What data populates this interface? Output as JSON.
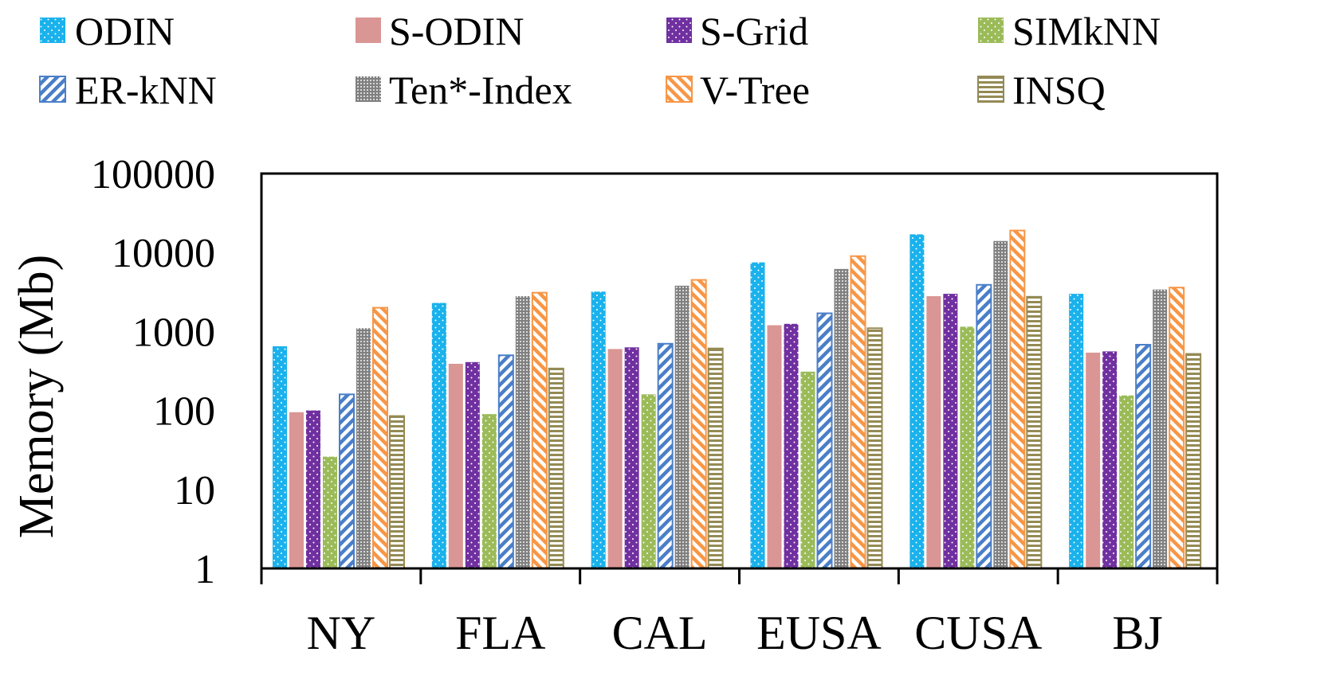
{
  "chart_data": {
    "type": "bar",
    "scale": "log",
    "xlabel": "",
    "ylabel": "Memory (Mb)",
    "ylim": [
      1,
      100000
    ],
    "yticks": [
      "1",
      "10",
      "100",
      "1000",
      "10000",
      "100000"
    ],
    "grid": false,
    "legend_position": "top",
    "categories": [
      "NY",
      "FLA",
      "CAL",
      "EUSA",
      "CUSA",
      "BJ"
    ],
    "series": [
      {
        "name": "ODIN",
        "color": "#1AB2EC",
        "pattern": "dots-white",
        "values": [
          650,
          2300,
          3200,
          7500,
          17000,
          3000
        ]
      },
      {
        "name": "S-ODIN",
        "color": "#D99694",
        "pattern": "solid",
        "values": [
          95,
          390,
          600,
          1200,
          2800,
          540
        ]
      },
      {
        "name": "S-Grid",
        "color": "#7030A0",
        "pattern": "dots-white",
        "values": [
          100,
          410,
          630,
          1250,
          3000,
          560
        ]
      },
      {
        "name": "SIMkNN",
        "color": "#9BBB59",
        "pattern": "dots-white",
        "values": [
          26,
          90,
          160,
          310,
          1150,
          155
        ]
      },
      {
        "name": "ER-kNN",
        "color": "#4A7EC8",
        "pattern": "diagonal-left",
        "values": [
          160,
          500,
          700,
          1700,
          3900,
          680
        ]
      },
      {
        "name": "Ten*-Index",
        "color": "#808080",
        "pattern": "dots-dense",
        "values": [
          1100,
          2800,
          3800,
          6200,
          14000,
          3400
        ]
      },
      {
        "name": "V-Tree",
        "color": "#F79646",
        "pattern": "diagonal-right",
        "values": [
          2000,
          3100,
          4500,
          9000,
          19000,
          3600
        ]
      },
      {
        "name": "INSQ",
        "color": "#948A54",
        "pattern": "horizontal",
        "values": [
          85,
          340,
          610,
          1100,
          2750,
          520
        ]
      }
    ]
  }
}
